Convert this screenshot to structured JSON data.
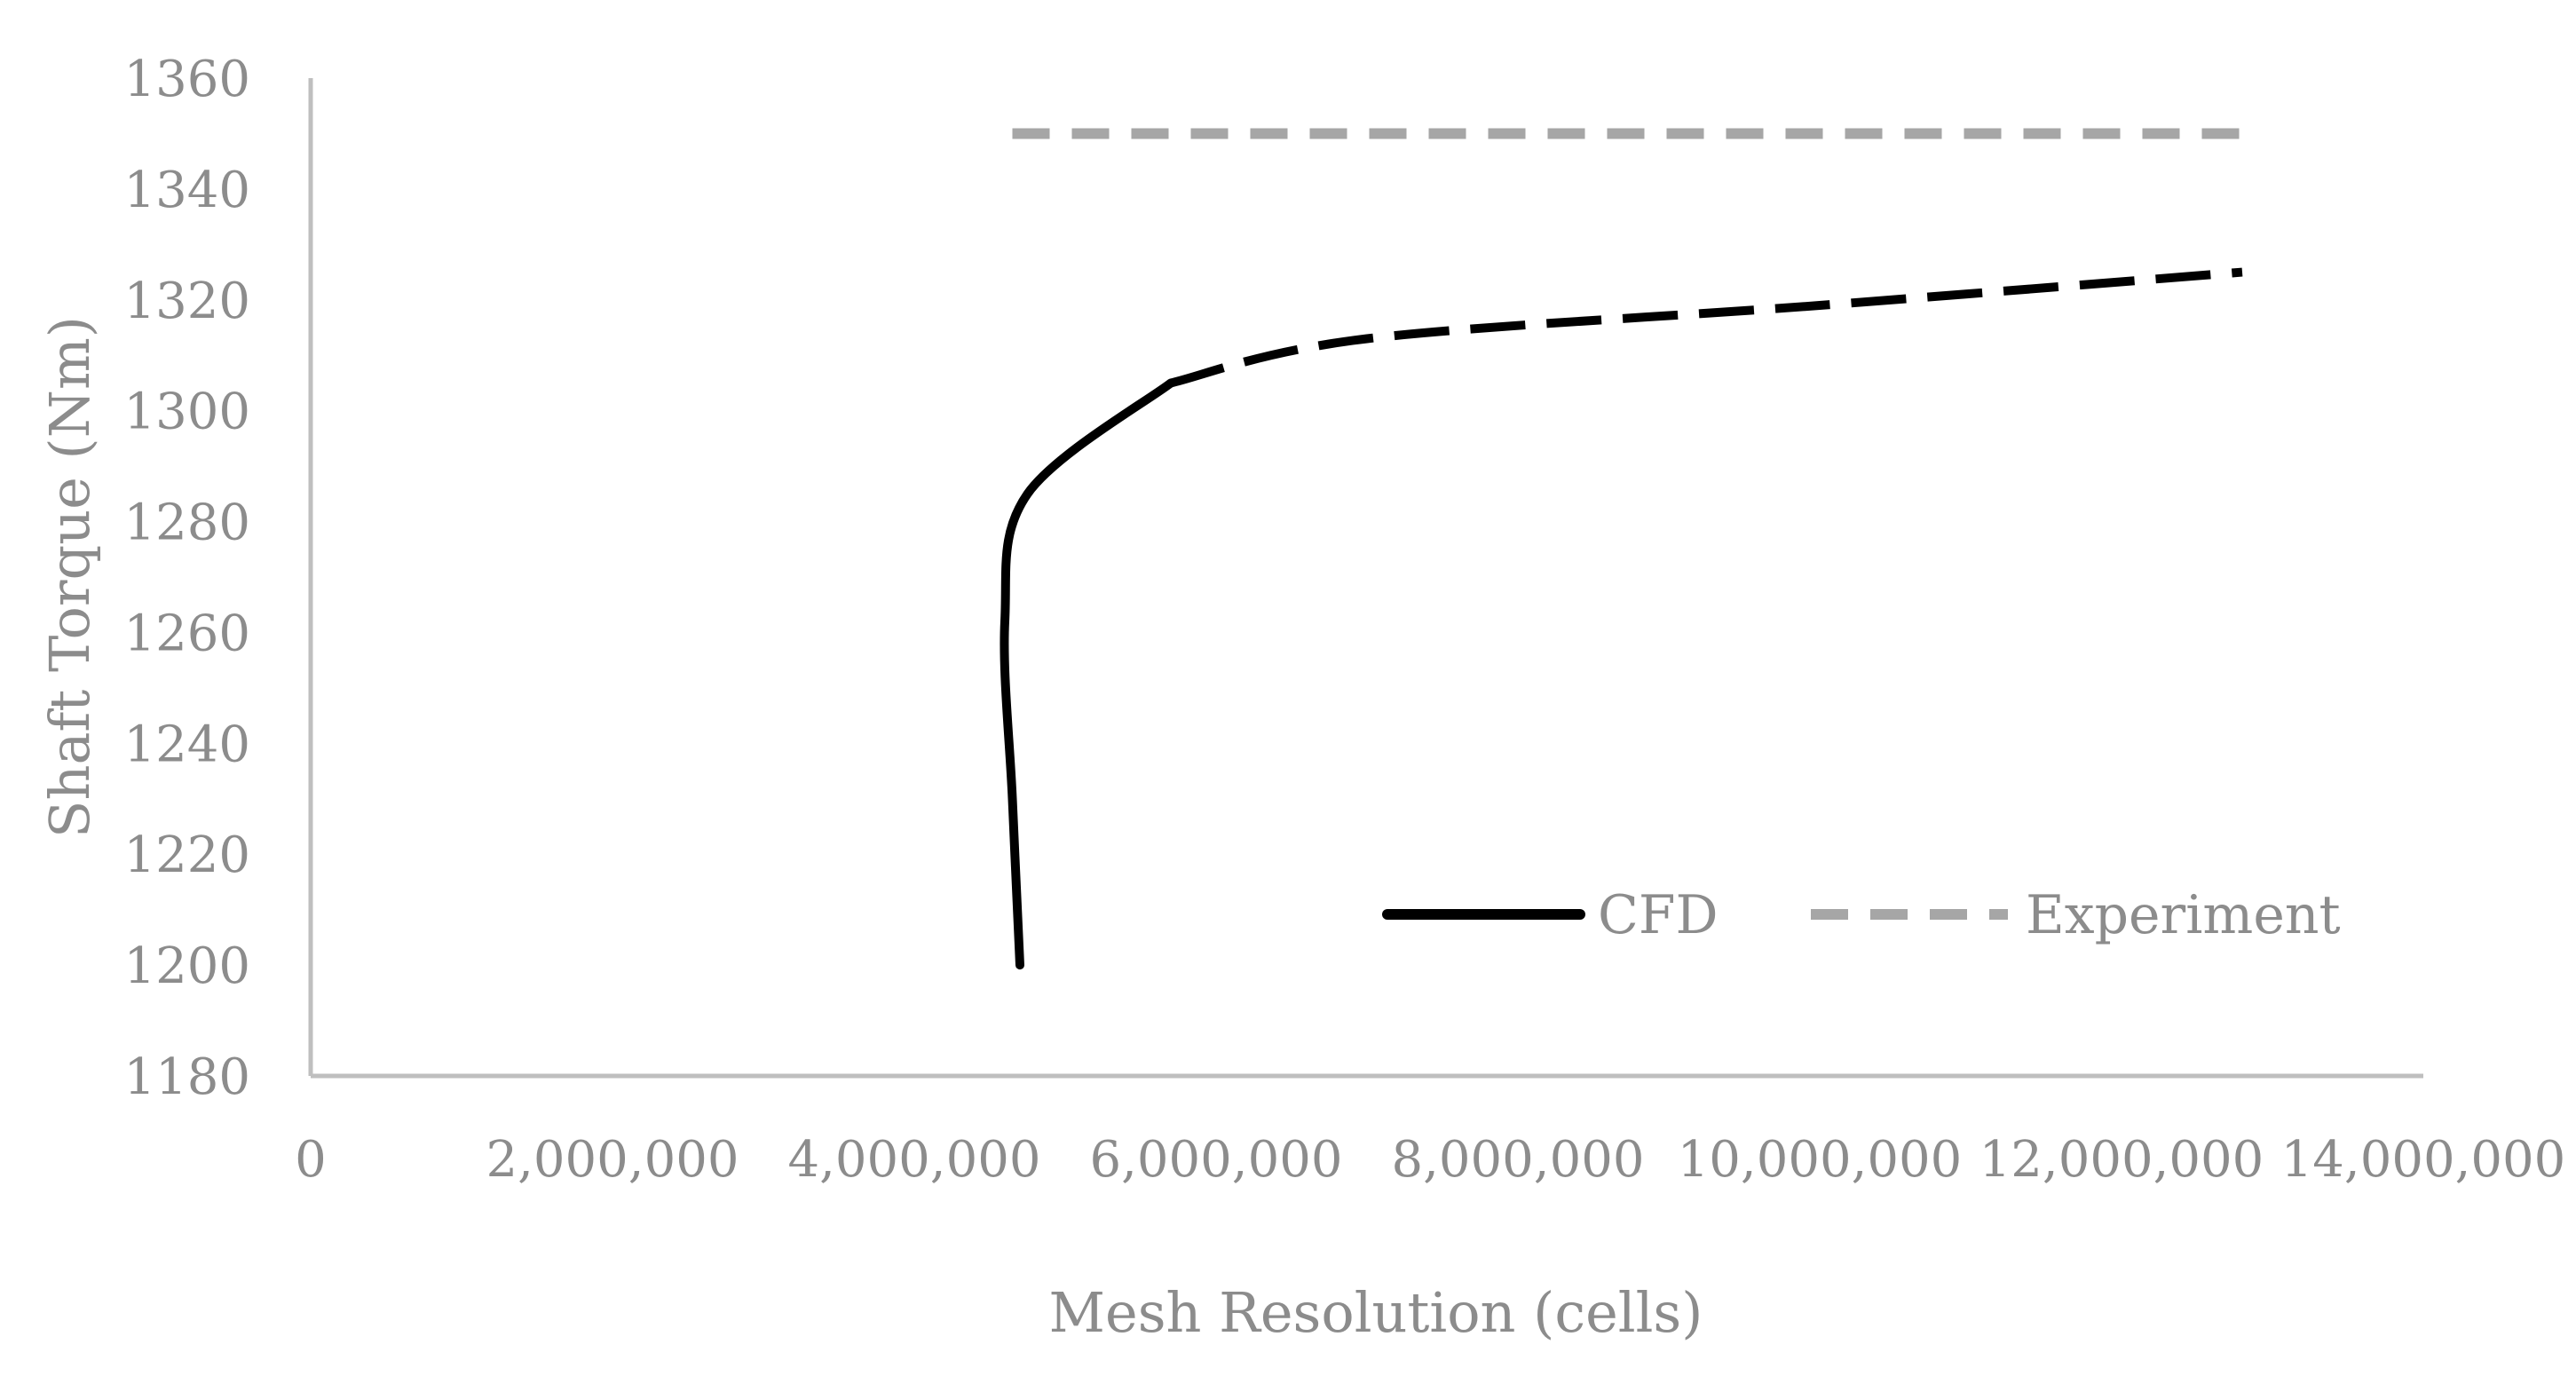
{
  "chart_data": {
    "type": "line",
    "title": "",
    "xlabel": "Mesh Resolution (cells)",
    "ylabel": "Shaft Torque (Nm)",
    "xlim": [
      0,
      14000000
    ],
    "ylim": [
      1180,
      1360
    ],
    "x_ticks": [
      0,
      2000000,
      4000000,
      6000000,
      8000000,
      10000000,
      12000000,
      14000000
    ],
    "x_tick_labels": [
      "0",
      "2,000,000",
      "4,000,000",
      "6,000,000",
      "8,000,000",
      "10,000,000",
      "12,000,000",
      "14,000,000"
    ],
    "y_ticks": [
      1180,
      1200,
      1220,
      1240,
      1260,
      1280,
      1300,
      1320,
      1340,
      1360
    ],
    "y_tick_labels": [
      "1180",
      "1200",
      "1220",
      "1240",
      "1260",
      "1280",
      "1300",
      "1320",
      "1340",
      "1360"
    ],
    "grid": false,
    "legend_position": "bottom-right",
    "series": [
      {
        "name": "CFD",
        "color": "#000000",
        "style": "solid-then-dashed",
        "points": [
          {
            "x": 4700000,
            "y": 1200
          },
          {
            "x": 4650000,
            "y": 1230
          },
          {
            "x": 4600000,
            "y": 1262
          },
          {
            "x": 4750000,
            "y": 1285
          },
          {
            "x": 5700000,
            "y": 1305
          },
          {
            "x": 7000000,
            "y": 1313
          },
          {
            "x": 10000000,
            "y": 1319
          },
          {
            "x": 12800000,
            "y": 1325
          }
        ]
      },
      {
        "name": "Experiment",
        "color": "#a6a6a6",
        "style": "dashed",
        "points": [
          {
            "x": 4650000,
            "y": 1350
          },
          {
            "x": 12800000,
            "y": 1350
          }
        ]
      }
    ]
  }
}
